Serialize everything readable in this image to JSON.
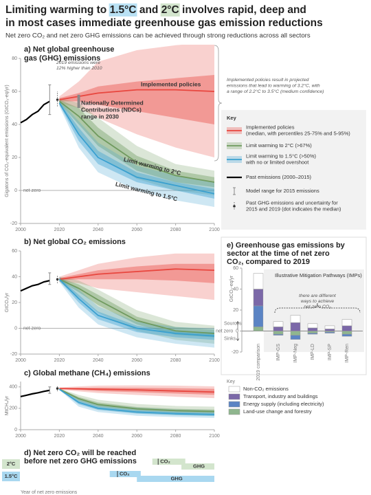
{
  "header": {
    "title_line1": [
      "Limiting warming to ",
      "1.5°C",
      " and ",
      "2°C",
      " involves rapid, deep and"
    ],
    "title_line2": "in most cases immediate greenhouse gas emission reductions",
    "title_highlights": [
      {
        "part": 1,
        "color": "#b9e1f4"
      },
      {
        "part": 3,
        "color": "#d3e5cd"
      }
    ],
    "subtitle": "Net zero CO₂ and net zero GHG emissions can be achieved through strong reductions across all sectors"
  },
  "chart_data": [
    {
      "type": "line",
      "title": [
        "a) Net global greenhouse",
        "gas (GHG) emissions"
      ],
      "y_label": "Gigatons of CO₂-equivalent emissions (GtCO₂-eq/yr)",
      "xlim": [
        2000,
        2100
      ],
      "xticks": [
        2000,
        2020,
        2040,
        2060,
        2080,
        2100
      ],
      "ylim": [
        -20,
        80
      ],
      "yticks": [
        -20,
        0,
        20,
        40,
        60,
        80
      ],
      "reference_line": {
        "value": 0,
        "label": "net zero"
      },
      "x": [
        2020,
        2030,
        2040,
        2060,
        2080,
        2100
      ],
      "past": {
        "x": [
          2000,
          2003,
          2006,
          2009,
          2012,
          2015
        ],
        "values": [
          41,
          43,
          46,
          48,
          52,
          54
        ],
        "color": "#000000"
      },
      "model_range": {
        "x": 2015,
        "low": 46,
        "high": 64
      },
      "uncertainty": {
        "x": 2019,
        "value": 55,
        "low": 51,
        "high": 60
      },
      "ndc_range": {
        "x": 2030,
        "low": 50,
        "high": 58
      },
      "series": [
        {
          "name": "Implemented policies",
          "color": "#e8463e",
          "values": [
            55,
            57,
            59,
            61,
            61,
            60
          ],
          "p25": [
            54,
            54,
            52,
            48,
            44,
            40
          ],
          "p75": [
            56,
            59,
            63,
            66,
            68,
            70
          ],
          "p5": [
            53,
            50,
            44,
            34,
            26,
            20
          ],
          "p95": [
            57,
            66,
            78,
            85,
            88,
            90
          ]
        },
        {
          "name": "Limit warming to 2°C",
          "color": "#6f9a5e",
          "values": [
            54,
            45,
            33,
            17,
            9,
            5
          ],
          "p25": [
            53,
            40,
            27,
            12,
            5,
            2
          ],
          "p75": [
            55,
            50,
            38,
            21,
            12,
            8
          ],
          "p5": [
            52,
            34,
            21,
            7,
            0,
            -3
          ],
          "p95": [
            56,
            53,
            44,
            27,
            16,
            12
          ]
        },
        {
          "name": "Limit warming to 1.5°C",
          "color": "#3aa0cf",
          "values": [
            53,
            34,
            20,
            8,
            3,
            -2
          ],
          "p25": [
            52,
            30,
            16,
            5,
            0,
            -5
          ],
          "p75": [
            54,
            38,
            24,
            11,
            5,
            1
          ],
          "p5": [
            51,
            26,
            11,
            0,
            -6,
            -10
          ],
          "p95": [
            55,
            42,
            29,
            15,
            9,
            5
          ]
        }
      ],
      "annotations": [
        {
          "lines": [
            "2019 emissions were",
            "12% higher than 2010"
          ]
        },
        {
          "lines": [
            "Nationally Determined",
            "Contributions (NDCs)",
            "range in 2030"
          ]
        },
        {
          "lines": [
            "Implemented policies result in projected",
            "emissions that lead to warming of 3.2°C, with",
            "a range of 2.2°C to 3.5°C (medium confidence)"
          ]
        }
      ]
    },
    {
      "type": "line",
      "title": [
        "b) Net global CO₂ emissions"
      ],
      "y_label": "GtCO₂/yr",
      "xlim": [
        2000,
        2100
      ],
      "xticks": [
        2000,
        2020,
        2040,
        2060,
        2080,
        2100
      ],
      "ylim": [
        -20,
        60
      ],
      "yticks": [
        -20,
        0,
        20,
        40,
        60
      ],
      "reference_line": {
        "value": 0,
        "label": "net zero"
      },
      "x": [
        2020,
        2030,
        2040,
        2060,
        2080,
        2100
      ],
      "past": {
        "x": [
          2000,
          2003,
          2006,
          2009,
          2012,
          2015
        ],
        "values": [
          29,
          31,
          33,
          34,
          36,
          37
        ],
        "color": "#000000"
      },
      "model_range": {
        "x": 2015,
        "low": 34,
        "high": 43
      },
      "uncertainty": {
        "x": 2019,
        "value": 38,
        "low": 35,
        "high": 41
      },
      "series": [
        {
          "color": "#e8463e",
          "values": [
            38,
            40,
            42,
            44,
            46,
            45
          ],
          "p25": [
            37,
            38,
            38,
            38,
            37,
            35
          ],
          "p75": [
            39,
            42,
            45,
            48,
            50,
            50
          ],
          "p5": [
            36,
            35,
            31,
            28,
            25,
            22
          ],
          "p95": [
            40,
            45,
            50,
            55,
            58,
            58
          ]
        },
        {
          "color": "#6f9a5e",
          "values": [
            38,
            31,
            22,
            6,
            -2,
            -4
          ],
          "p25": [
            37,
            28,
            18,
            3,
            -5,
            -7
          ],
          "p75": [
            39,
            34,
            26,
            9,
            1,
            -1
          ],
          "p5": [
            36,
            24,
            12,
            -2,
            -9,
            -12
          ],
          "p95": [
            40,
            37,
            30,
            14,
            5,
            2
          ]
        },
        {
          "color": "#3aa0cf",
          "values": [
            38,
            23,
            10,
            0,
            -4,
            -6
          ],
          "p25": [
            37,
            20,
            7,
            -3,
            -7,
            -9
          ],
          "p75": [
            39,
            26,
            13,
            2,
            -2,
            -3
          ],
          "p5": [
            36,
            16,
            3,
            -7,
            -12,
            -15
          ],
          "p95": [
            40,
            30,
            17,
            5,
            1,
            0
          ]
        }
      ]
    },
    {
      "type": "line",
      "title": [
        "c) Global methane (CH₄) emissions"
      ],
      "y_label": "MtCH₄/yr",
      "xlim": [
        2000,
        2100
      ],
      "xticks": [
        2000,
        2020,
        2040,
        2060,
        2080,
        2100
      ],
      "ylim": [
        0,
        450
      ],
      "yticks": [
        0,
        200,
        400
      ],
      "x": [
        2020,
        2030,
        2040,
        2060,
        2080,
        2100
      ],
      "past": {
        "x": [
          2000,
          2003,
          2006,
          2009,
          2012,
          2015
        ],
        "values": [
          310,
          322,
          335,
          345,
          358,
          368
        ],
        "color": "#000000"
      },
      "model_range": {
        "x": 2015,
        "low": 340,
        "high": 400
      },
      "uncertainty": {
        "x": 2019,
        "value": 385,
        "low": 360,
        "high": 405
      },
      "series": [
        {
          "color": "#e8463e",
          "values": [
            385,
            382,
            378,
            372,
            362,
            352
          ],
          "p25": [
            380,
            372,
            362,
            350,
            338,
            326
          ],
          "p75": [
            390,
            392,
            393,
            392,
            388,
            382
          ],
          "p5": [
            375,
            358,
            342,
            325,
            308,
            295
          ],
          "p95": [
            395,
            405,
            412,
            415,
            412,
            405
          ]
        },
        {
          "color": "#6f9a5e",
          "values": [
            380,
            290,
            235,
            195,
            178,
            170
          ],
          "p25": [
            378,
            272,
            215,
            178,
            160,
            152
          ],
          "p75": [
            383,
            305,
            255,
            212,
            195,
            188
          ],
          "p5": [
            375,
            250,
            190,
            155,
            138,
            130
          ],
          "p95": [
            386,
            325,
            280,
            240,
            222,
            215
          ]
        },
        {
          "color": "#3aa0cf",
          "values": [
            378,
            255,
            200,
            165,
            150,
            142
          ],
          "p25": [
            375,
            238,
            185,
            150,
            136,
            128
          ],
          "p75": [
            381,
            272,
            215,
            180,
            164,
            156
          ],
          "p5": [
            372,
            215,
            165,
            130,
            118,
            110
          ],
          "p95": [
            384,
            295,
            240,
            205,
            188,
            180
          ]
        }
      ]
    },
    {
      "type": "range",
      "title": [
        "d) Net zero CO₂ will be reached",
        "before net zero GHG emissions"
      ],
      "x_label": "Year of net zero emissions",
      "xlim": [
        2000,
        2100
      ],
      "rows": [
        {
          "label": "2°C",
          "color": "#d3e5cd",
          "bars": [
            {
              "name": "CO₂",
              "low": 2068,
              "high": 2085,
              "median": 2071
            },
            {
              "name": "GHG",
              "low": 2083,
              "high": 2100
            }
          ]
        },
        {
          "label": "1.5°C",
          "color": "#a9d8f0",
          "bars": [
            {
              "name": "CO₂",
              "low": 2046,
              "high": 2062,
              "median": 2050
            },
            {
              "name": "GHG",
              "low": 2060,
              "high": 2100
            }
          ]
        }
      ]
    },
    {
      "type": "bar",
      "title": [
        "e) Greenhouse gas emissions by",
        "sector at the time of net zero",
        "CO₂, compared to 2019"
      ],
      "y_label": "GtCO₂-eq/yr",
      "subtitle": "Illustrative Mitigation Pathways (IMPs)",
      "note": [
        "there are different",
        "ways to achieve",
        "net-zero CO₂"
      ],
      "sources_label": "Sources",
      "sinks_label": "Sinks",
      "reference_line": {
        "value": 0,
        "label": "net zero"
      },
      "ylim": [
        -20,
        60
      ],
      "yticks": [
        -20,
        0,
        20,
        40,
        60
      ],
      "categories": [
        "2019 comparison",
        "IMP-GS",
        "IMP-Neg",
        "IMP-LD",
        "IMP-SP",
        "IMP-Ren"
      ],
      "legend_title": "Key",
      "series": [
        {
          "name": "Non-CO₂ emissions",
          "color": "#ffffff",
          "values": [
            15,
            5,
            7,
            4,
            3,
            6
          ]
        },
        {
          "name": "Transport, industry and buildings",
          "color": "#7b68a8",
          "values": [
            16,
            4,
            8,
            3,
            2,
            5
          ]
        },
        {
          "name": "Energy supply (including electricity)",
          "color": "#5b84c4",
          "values": [
            20,
            -1,
            -4,
            -1,
            -1,
            -2
          ]
        },
        {
          "name": "Land-use change and forestry",
          "color": "#8fb68e",
          "values": [
            4,
            -3,
            -4,
            -2,
            -1,
            -3
          ]
        }
      ]
    }
  ],
  "key_a": {
    "title": "Key",
    "items": [
      {
        "kind": "band",
        "series": 0,
        "lines": [
          "Implemented policies",
          "(median, with percentiles 25-75% and 5-95%)"
        ]
      },
      {
        "kind": "band",
        "series": 1,
        "lines": [
          "Limit warming to 2°C (>67%)"
        ]
      },
      {
        "kind": "band",
        "series": 2,
        "lines": [
          "Limit warming to 1.5°C (>50%)",
          "with no or limited overshoot"
        ]
      },
      {
        "kind": "line",
        "lines": [
          "Past emissions (2000–2015)"
        ]
      },
      {
        "kind": "range",
        "lines": [
          "Model range for 2015 emissions"
        ]
      },
      {
        "kind": "uncertainty",
        "lines": [
          "Past GHG emissions and uncertainty for",
          "2015 and 2019 (dot indicates the median)"
        ]
      }
    ]
  }
}
